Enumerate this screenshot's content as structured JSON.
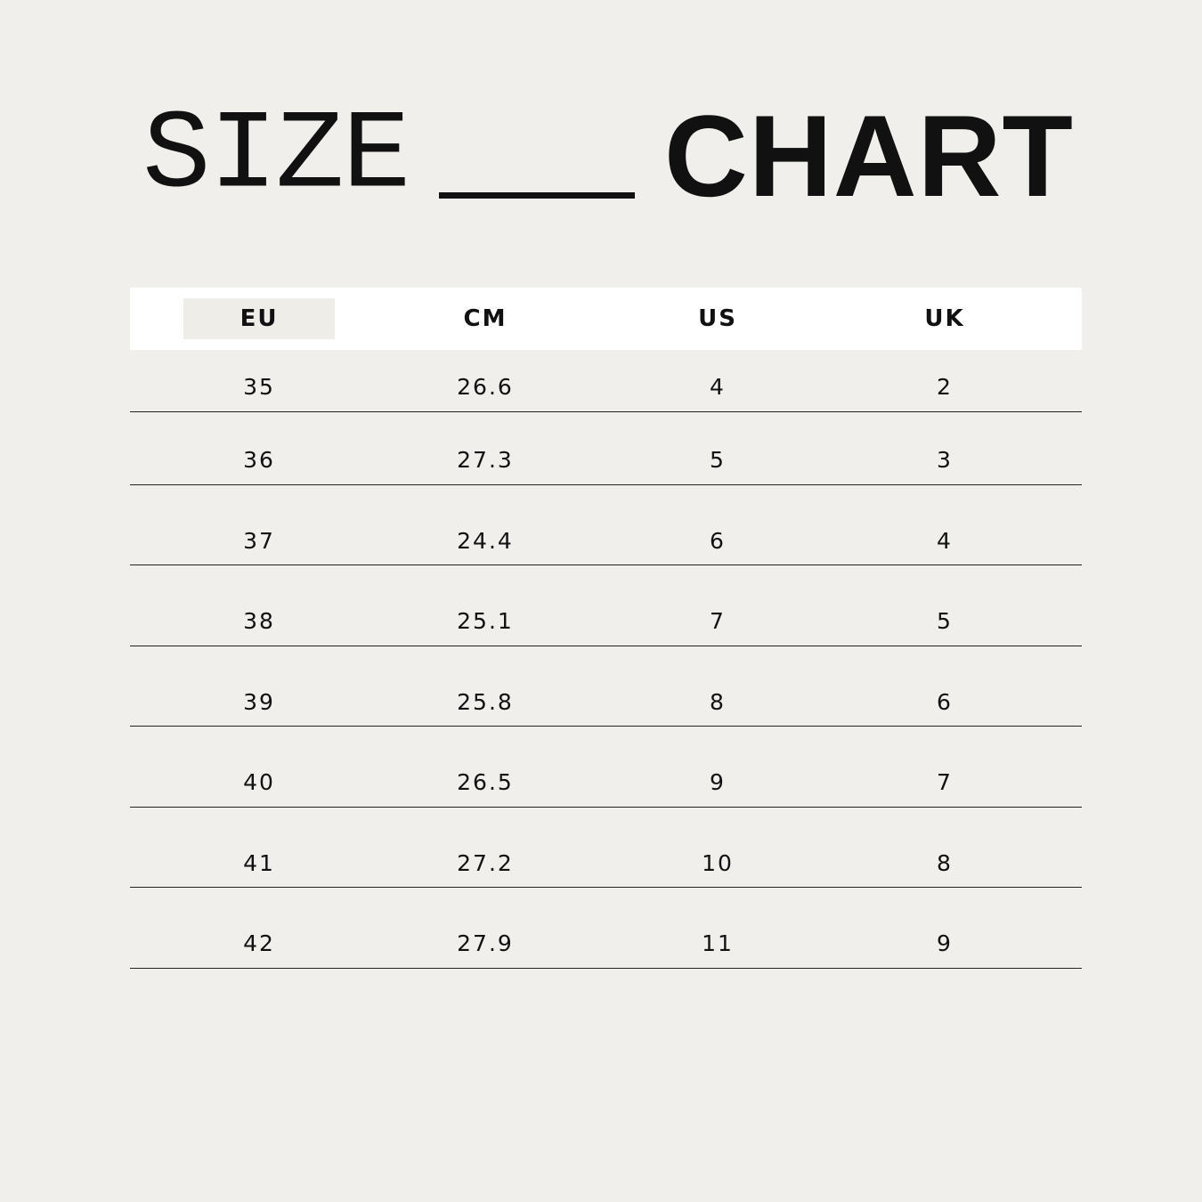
{
  "title": {
    "light": "SIZE",
    "bold": "CHART"
  },
  "table": {
    "headers": [
      "EU",
      "CM",
      "US",
      "UK"
    ],
    "highlighted_column": "EU",
    "rows": [
      [
        "35",
        "26.6",
        "4",
        "2"
      ],
      [
        "36",
        "27.3",
        "5",
        "3"
      ],
      [
        "37",
        "24.4",
        "6",
        "4"
      ],
      [
        "38",
        "25.1",
        "7",
        "5"
      ],
      [
        "39",
        "25.8",
        "8",
        "6"
      ],
      [
        "40",
        "26.5",
        "9",
        "7"
      ],
      [
        "41",
        "27.2",
        "10",
        "8"
      ],
      [
        "42",
        "27.9",
        "11",
        "9"
      ]
    ]
  },
  "colors": {
    "background": "#f0efeb",
    "header": "#ffffff",
    "highlight": "#efede8",
    "text": "#111111"
  }
}
